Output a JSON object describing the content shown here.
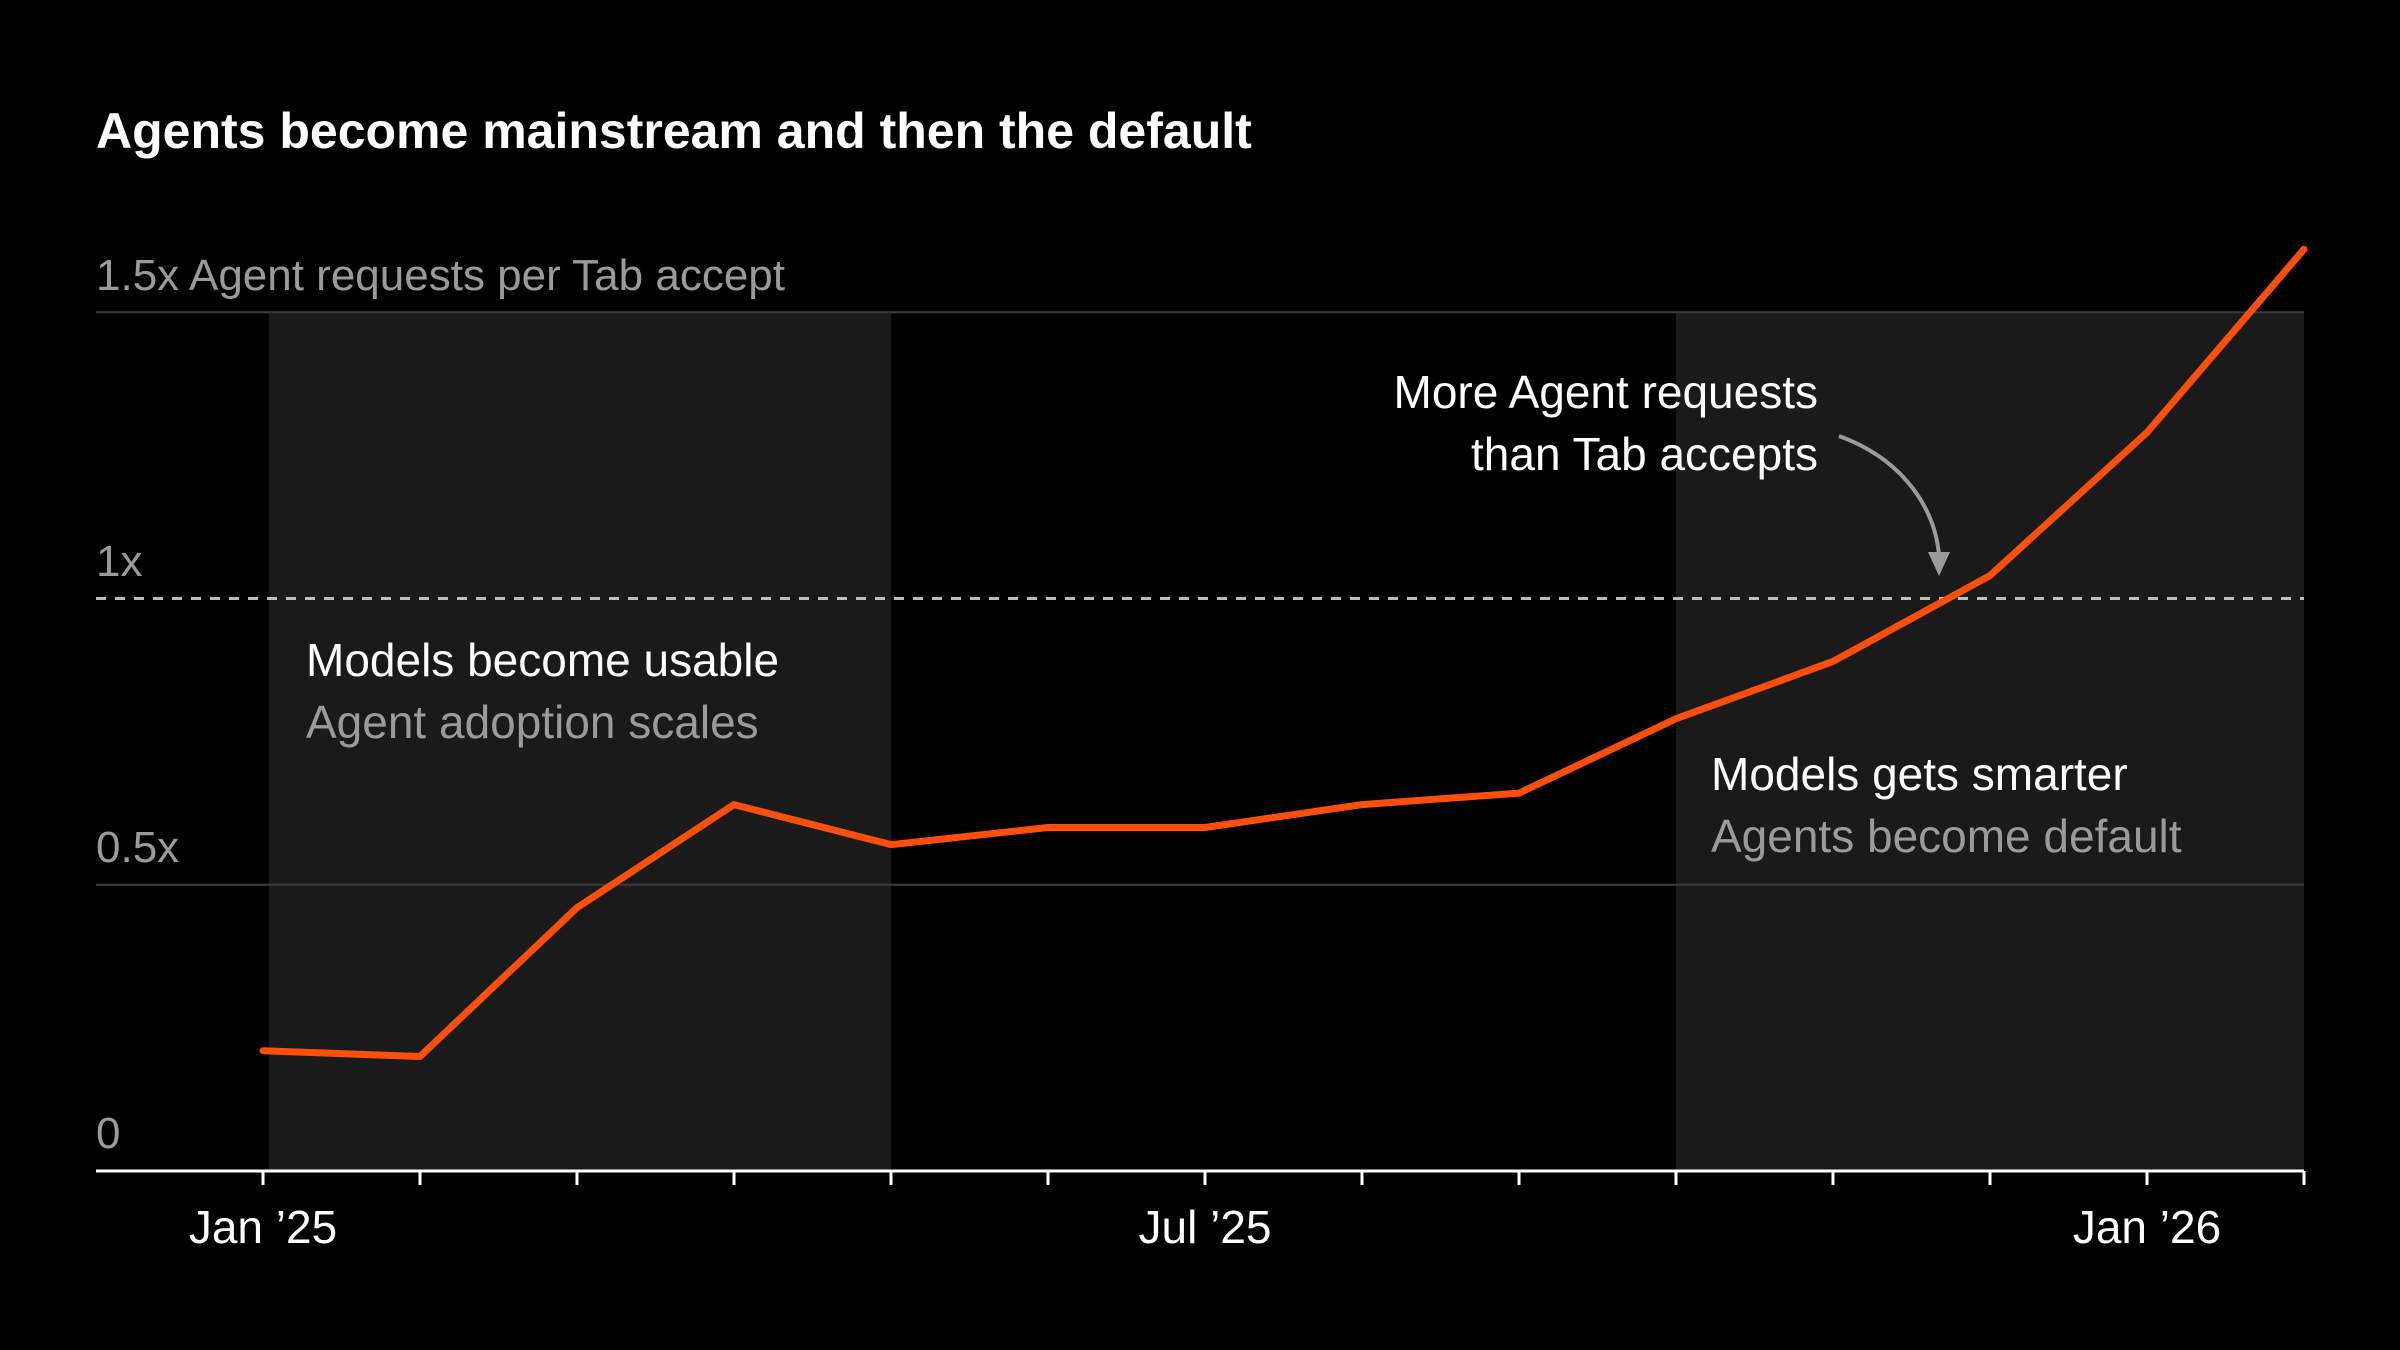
{
  "chart_data": {
    "type": "line",
    "title": "Agents become mainstream and then the default",
    "ylabel": "Agent requests per Tab accept",
    "ylim": [
      0,
      1.5
    ],
    "y_ticks": [
      {
        "value": 0,
        "label": "0"
      },
      {
        "value": 0.5,
        "label": "0.5x"
      },
      {
        "value": 1,
        "label": "1x"
      },
      {
        "value": 1.5,
        "label": "1.5x"
      }
    ],
    "x": [
      "2025-01",
      "2025-02",
      "2025-03",
      "2025-04",
      "2025-05",
      "2025-06",
      "2025-07",
      "2025-08",
      "2025-09",
      "2025-10",
      "2025-11",
      "2025-12",
      "2026-01",
      "2026-02"
    ],
    "x_tick_labels": [
      {
        "index": 0,
        "label": "Jan ’25"
      },
      {
        "index": 6,
        "label": "Jul ’25"
      },
      {
        "index": 12,
        "label": "Jan ’26"
      }
    ],
    "values": [
      0.21,
      0.2,
      0.46,
      0.64,
      0.57,
      0.6,
      0.6,
      0.64,
      0.66,
      0.79,
      0.89,
      1.04,
      1.29,
      1.61
    ],
    "reference_line": {
      "value": 1,
      "style": "dashed"
    },
    "shaded_periods": [
      {
        "from": "2025-01",
        "to": "2025-05",
        "title": "Models become usable",
        "subtitle": "Agent adoption scales"
      },
      {
        "from": "2025-10",
        "to": "2026-02",
        "title": "Models gets smarter",
        "subtitle": "Agents become default"
      }
    ],
    "annotation": {
      "lines": [
        "More Agent requests",
        "than Tab accepts"
      ]
    },
    "grid": true,
    "colors": {
      "line": "#FF4F0A",
      "shade": "#1A1A1A",
      "background": "#000000",
      "grid": "#3A3A3A",
      "muted_text": "#9A9A9A"
    }
  }
}
